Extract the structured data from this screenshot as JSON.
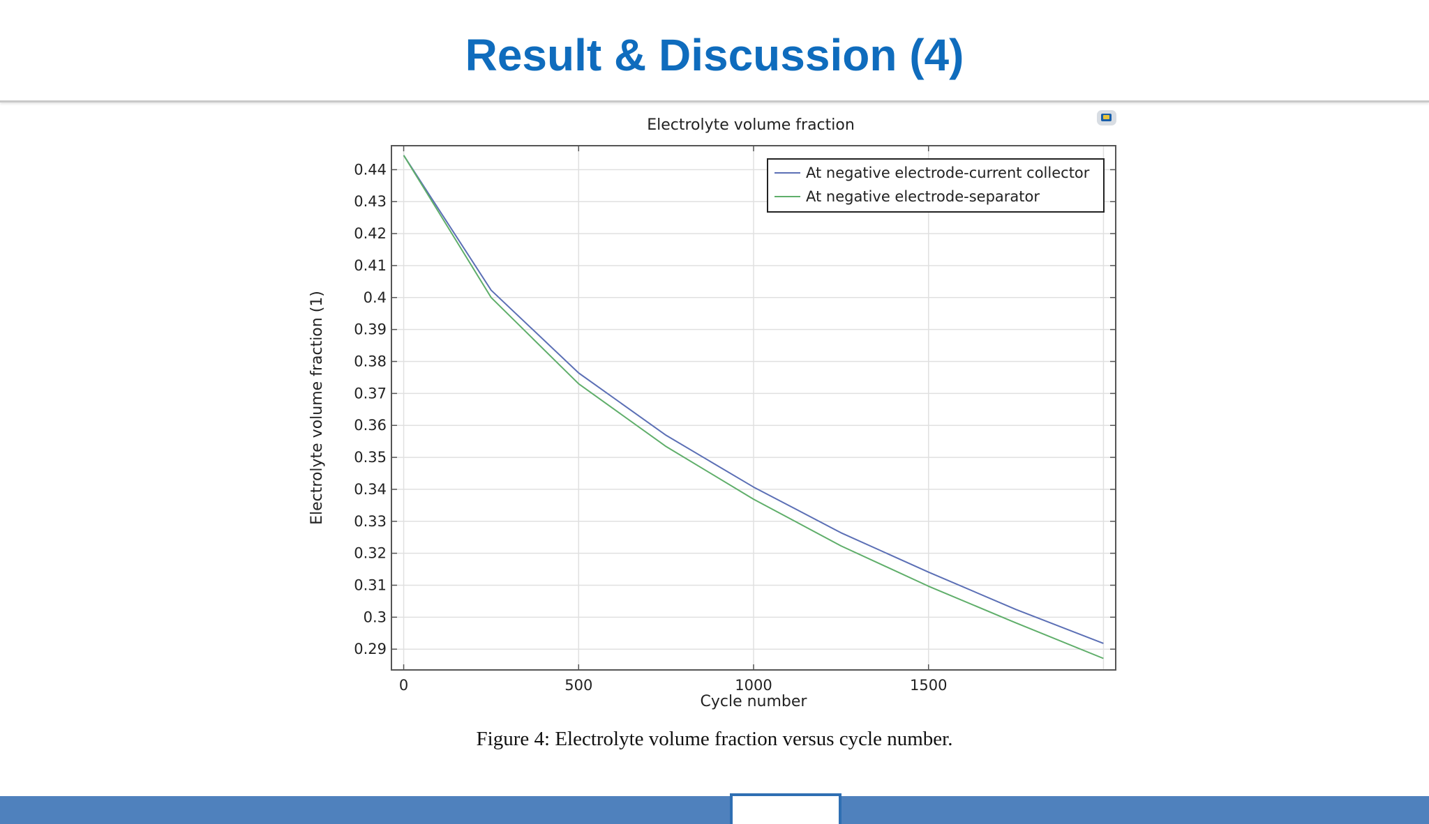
{
  "slide": {
    "title": "Result & Discussion (4)",
    "caption": "Figure 4: Electrolyte volume fraction versus cycle number."
  },
  "colors": {
    "title": "#0f6cbd",
    "footer": "#4f81bd",
    "series_blue": "#5b6fb5",
    "series_green": "#5fae6a"
  },
  "icons": {
    "chart_tool": "comsol-plot-icon"
  },
  "chart_data": {
    "type": "line",
    "title": "Electrolyte volume fraction",
    "xlabel": "Cycle number",
    "ylabel": "Electrolyte volume fraction (1)",
    "xlim": [
      -35,
      2035
    ],
    "ylim": [
      0.2835,
      0.4475
    ],
    "xticks": [
      0,
      500,
      1000,
      1500
    ],
    "yticks": [
      0.29,
      0.3,
      0.31,
      0.32,
      0.33,
      0.34,
      0.35,
      0.36,
      0.37,
      0.38,
      0.39,
      0.4,
      0.41,
      0.42,
      0.43,
      0.44
    ],
    "ytick_labels": [
      "0.29",
      "0.3",
      "0.31",
      "0.32",
      "0.33",
      "0.34",
      "0.35",
      "0.36",
      "0.37",
      "0.38",
      "0.39",
      "0.4",
      "0.41",
      "0.42",
      "0.43",
      "0.44"
    ],
    "grid": true,
    "legend": "top-right",
    "series": [
      {
        "name": "At negative electrode-current collector",
        "color": "#5b6fb5",
        "x": [
          0,
          250,
          500,
          750,
          1000,
          1250,
          1500,
          1750,
          2000
        ],
        "y": [
          0.4445,
          0.4023,
          0.3764,
          0.3569,
          0.3407,
          0.3264,
          0.3141,
          0.3024,
          0.2918
        ]
      },
      {
        "name": "At negative electrode-separator",
        "color": "#5fae6a",
        "x": [
          0,
          250,
          500,
          750,
          1000,
          1250,
          1500,
          1750,
          2000
        ],
        "y": [
          0.4445,
          0.4,
          0.373,
          0.3534,
          0.3369,
          0.3223,
          0.3097,
          0.2982,
          0.2871
        ]
      }
    ]
  }
}
